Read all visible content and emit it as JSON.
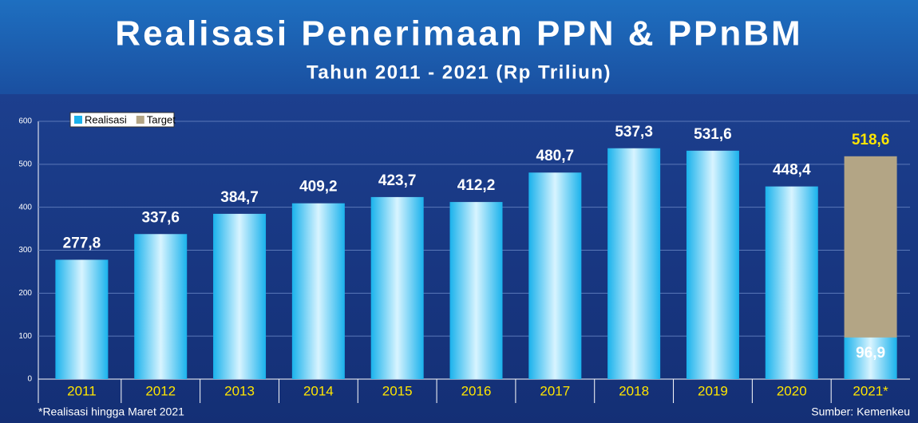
{
  "chart_data": {
    "type": "bar",
    "title": "Realisasi Penerimaan PPN & PPnBM",
    "subtitle": "Tahun 2011 - 2021 (Rp Triliun)",
    "categories": [
      "2011",
      "2012",
      "2013",
      "2014",
      "2015",
      "2016",
      "2017",
      "2018",
      "2019",
      "2020",
      "2021*"
    ],
    "series": [
      {
        "name": "Realisasi",
        "color": "#1ab2ec",
        "values": [
          277.8,
          337.6,
          384.7,
          409.2,
          423.7,
          412.2,
          480.7,
          537.3,
          531.6,
          448.4,
          96.9
        ],
        "value_labels": [
          "277,8",
          "337,6",
          "384,7",
          "409,2",
          "423,7",
          "412,2",
          "480,7",
          "537,3",
          "531,6",
          "448,4",
          "96,9"
        ]
      },
      {
        "name": "Target",
        "color": "#b3a585",
        "values": [
          null,
          null,
          null,
          null,
          null,
          null,
          null,
          null,
          null,
          null,
          518.6
        ],
        "value_labels": [
          null,
          null,
          null,
          null,
          null,
          null,
          null,
          null,
          null,
          null,
          "518,6"
        ]
      }
    ],
    "ylim": [
      0,
      600
    ],
    "yticks": [
      0,
      100,
      200,
      300,
      400,
      500,
      600
    ],
    "grid": true,
    "legend": "top-left",
    "footnote": "*Realisasi hingga Maret 2021",
    "source": "Sumber: Kemenkeu"
  }
}
